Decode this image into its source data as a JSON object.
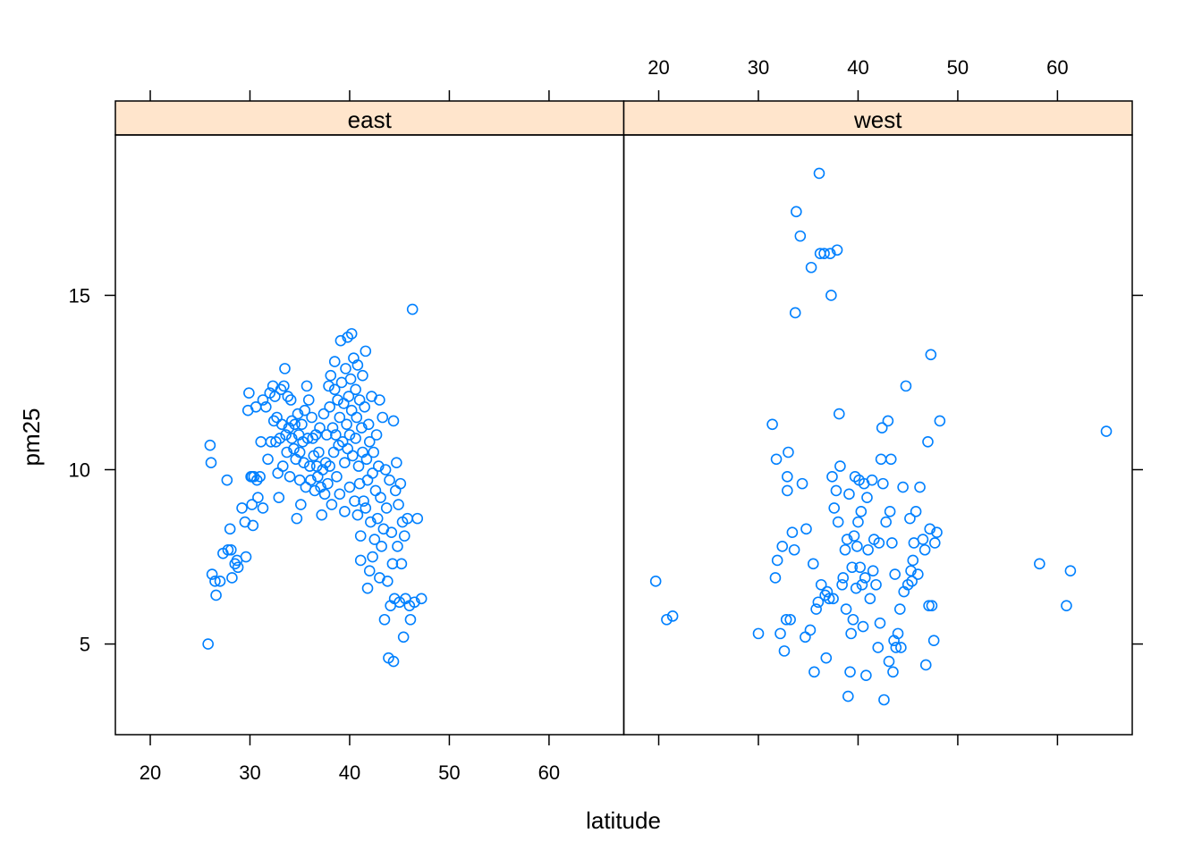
{
  "chart_data": {
    "type": "scatter",
    "xlabel": "latitude",
    "ylabel": "pm25",
    "xlim": [
      16.5,
      67.5
    ],
    "ylim": [
      2.4,
      19.6
    ],
    "xticks": [
      20,
      30,
      40,
      50,
      60
    ],
    "yticks": [
      5,
      10,
      15
    ],
    "grid": false,
    "marker": "open-circle",
    "point_color": "#0080FF",
    "strip_color": "#FFE5CC",
    "panels": [
      {
        "name": "east",
        "points": [
          [
            25.8,
            5.0
          ],
          [
            26.0,
            10.7
          ],
          [
            26.1,
            10.2
          ],
          [
            26.2,
            7.0
          ],
          [
            26.5,
            6.8
          ],
          [
            26.6,
            6.4
          ],
          [
            27.0,
            6.8
          ],
          [
            27.3,
            7.6
          ],
          [
            27.7,
            9.7
          ],
          [
            27.8,
            7.7
          ],
          [
            28.0,
            8.3
          ],
          [
            28.1,
            7.7
          ],
          [
            28.2,
            6.9
          ],
          [
            28.5,
            7.3
          ],
          [
            28.7,
            7.4
          ],
          [
            28.8,
            7.2
          ],
          [
            29.2,
            8.9
          ],
          [
            29.5,
            8.5
          ],
          [
            29.6,
            7.5
          ],
          [
            29.8,
            11.7
          ],
          [
            29.9,
            12.2
          ],
          [
            30.1,
            9.8
          ],
          [
            30.2,
            9.8
          ],
          [
            30.2,
            9.0
          ],
          [
            30.3,
            8.4
          ],
          [
            30.4,
            9.8
          ],
          [
            30.6,
            11.8
          ],
          [
            30.7,
            9.7
          ],
          [
            30.8,
            9.2
          ],
          [
            31.0,
            9.8
          ],
          [
            31.1,
            10.8
          ],
          [
            31.3,
            8.9
          ],
          [
            31.3,
            12.0
          ],
          [
            31.6,
            11.8
          ],
          [
            31.8,
            10.3
          ],
          [
            32.0,
            12.2
          ],
          [
            32.1,
            10.8
          ],
          [
            32.3,
            12.4
          ],
          [
            32.4,
            11.4
          ],
          [
            32.5,
            12.1
          ],
          [
            32.6,
            10.8
          ],
          [
            32.7,
            11.5
          ],
          [
            32.8,
            9.9
          ],
          [
            32.9,
            9.2
          ],
          [
            33.0,
            10.9
          ],
          [
            33.1,
            12.3
          ],
          [
            33.2,
            11.3
          ],
          [
            33.3,
            10.1
          ],
          [
            33.4,
            12.4
          ],
          [
            33.5,
            12.9
          ],
          [
            33.6,
            11.0
          ],
          [
            33.7,
            10.5
          ],
          [
            33.8,
            12.1
          ],
          [
            33.9,
            11.2
          ],
          [
            34.0,
            9.8
          ],
          [
            34.1,
            12.0
          ],
          [
            34.2,
            11.4
          ],
          [
            34.2,
            10.9
          ],
          [
            34.4,
            10.6
          ],
          [
            34.5,
            11.3
          ],
          [
            34.6,
            10.3
          ],
          [
            34.7,
            8.6
          ],
          [
            34.8,
            11.6
          ],
          [
            34.9,
            11.0
          ],
          [
            35.0,
            10.5
          ],
          [
            35.0,
            9.7
          ],
          [
            35.1,
            9.0
          ],
          [
            35.2,
            11.3
          ],
          [
            35.3,
            10.8
          ],
          [
            35.4,
            10.2
          ],
          [
            35.5,
            11.7
          ],
          [
            35.6,
            9.5
          ],
          [
            35.7,
            12.4
          ],
          [
            35.8,
            10.9
          ],
          [
            35.9,
            12.0
          ],
          [
            36.0,
            10.1
          ],
          [
            36.1,
            9.7
          ],
          [
            36.2,
            11.5
          ],
          [
            36.3,
            10.9
          ],
          [
            36.4,
            10.4
          ],
          [
            36.5,
            9.4
          ],
          [
            36.6,
            11.0
          ],
          [
            36.7,
            10.1
          ],
          [
            36.8,
            9.8
          ],
          [
            36.9,
            10.5
          ],
          [
            37.0,
            11.2
          ],
          [
            37.1,
            9.5
          ],
          [
            37.2,
            8.7
          ],
          [
            37.3,
            10.0
          ],
          [
            37.4,
            11.6
          ],
          [
            37.5,
            9.3
          ],
          [
            37.6,
            10.2
          ],
          [
            37.7,
            11.0
          ],
          [
            37.8,
            9.6
          ],
          [
            37.9,
            12.4
          ],
          [
            38.0,
            10.1
          ],
          [
            38.0,
            11.8
          ],
          [
            38.1,
            12.7
          ],
          [
            38.2,
            9.0
          ],
          [
            38.3,
            11.2
          ],
          [
            38.4,
            10.5
          ],
          [
            38.5,
            13.1
          ],
          [
            38.5,
            12.3
          ],
          [
            38.6,
            11.0
          ],
          [
            38.7,
            9.8
          ],
          [
            38.8,
            12.0
          ],
          [
            38.9,
            10.7
          ],
          [
            39.0,
            11.5
          ],
          [
            39.0,
            9.3
          ],
          [
            39.1,
            13.7
          ],
          [
            39.2,
            12.5
          ],
          [
            39.3,
            10.8
          ],
          [
            39.4,
            11.9
          ],
          [
            39.5,
            10.2
          ],
          [
            39.5,
            8.8
          ],
          [
            39.6,
            12.9
          ],
          [
            39.7,
            11.3
          ],
          [
            39.8,
            13.8
          ],
          [
            39.8,
            10.6
          ],
          [
            39.9,
            12.1
          ],
          [
            40.0,
            11.0
          ],
          [
            40.0,
            9.5
          ],
          [
            40.1,
            12.6
          ],
          [
            40.2,
            13.9
          ],
          [
            40.2,
            11.7
          ],
          [
            40.3,
            10.4
          ],
          [
            40.4,
            13.2
          ],
          [
            40.5,
            9.1
          ],
          [
            40.6,
            12.3
          ],
          [
            40.6,
            10.9
          ],
          [
            40.7,
            11.5
          ],
          [
            40.8,
            8.7
          ],
          [
            40.8,
            13.0
          ],
          [
            40.9,
            10.1
          ],
          [
            41.0,
            12.0
          ],
          [
            41.0,
            9.6
          ],
          [
            41.1,
            8.1
          ],
          [
            41.1,
            7.4
          ],
          [
            41.2,
            11.2
          ],
          [
            41.3,
            10.5
          ],
          [
            41.3,
            12.7
          ],
          [
            41.4,
            9.1
          ],
          [
            41.5,
            11.8
          ],
          [
            41.6,
            13.4
          ],
          [
            41.6,
            8.9
          ],
          [
            41.7,
            10.3
          ],
          [
            41.8,
            6.6
          ],
          [
            41.8,
            9.7
          ],
          [
            41.9,
            11.3
          ],
          [
            42.0,
            7.1
          ],
          [
            42.0,
            10.8
          ],
          [
            42.1,
            8.5
          ],
          [
            42.2,
            12.1
          ],
          [
            42.3,
            9.9
          ],
          [
            42.3,
            7.5
          ],
          [
            42.4,
            10.5
          ],
          [
            42.5,
            8.0
          ],
          [
            42.6,
            9.4
          ],
          [
            42.7,
            11.0
          ],
          [
            42.8,
            8.6
          ],
          [
            42.9,
            10.1
          ],
          [
            43.0,
            6.9
          ],
          [
            43.0,
            12.0
          ],
          [
            43.1,
            9.2
          ],
          [
            43.2,
            7.8
          ],
          [
            43.3,
            11.5
          ],
          [
            43.4,
            8.3
          ],
          [
            43.5,
            5.7
          ],
          [
            43.6,
            10.0
          ],
          [
            43.7,
            8.9
          ],
          [
            43.8,
            6.8
          ],
          [
            43.9,
            4.6
          ],
          [
            44.0,
            9.7
          ],
          [
            44.1,
            6.1
          ],
          [
            44.2,
            8.2
          ],
          [
            44.3,
            7.3
          ],
          [
            44.4,
            11.4
          ],
          [
            44.4,
            4.5
          ],
          [
            44.5,
            6.3
          ],
          [
            44.6,
            9.4
          ],
          [
            44.7,
            10.2
          ],
          [
            44.8,
            7.8
          ],
          [
            44.9,
            9.0
          ],
          [
            45.0,
            6.2
          ],
          [
            45.1,
            9.6
          ],
          [
            45.2,
            7.3
          ],
          [
            45.3,
            8.5
          ],
          [
            45.4,
            5.2
          ],
          [
            45.5,
            8.1
          ],
          [
            45.6,
            6.3
          ],
          [
            45.8,
            8.6
          ],
          [
            46.0,
            6.1
          ],
          [
            46.1,
            5.7
          ],
          [
            46.3,
            14.6
          ],
          [
            46.5,
            6.2
          ],
          [
            46.8,
            8.6
          ],
          [
            47.2,
            6.3
          ]
        ]
      },
      {
        "name": "west",
        "points": [
          [
            19.7,
            6.8
          ],
          [
            20.8,
            5.7
          ],
          [
            21.4,
            5.8
          ],
          [
            30.0,
            5.3
          ],
          [
            31.4,
            11.3
          ],
          [
            31.7,
            6.9
          ],
          [
            31.8,
            10.3
          ],
          [
            31.9,
            7.4
          ],
          [
            32.2,
            5.3
          ],
          [
            32.4,
            7.8
          ],
          [
            32.6,
            4.8
          ],
          [
            32.8,
            5.7
          ],
          [
            32.9,
            9.8
          ],
          [
            32.9,
            9.4
          ],
          [
            33.0,
            10.5
          ],
          [
            33.2,
            5.7
          ],
          [
            33.4,
            8.2
          ],
          [
            33.6,
            7.7
          ],
          [
            33.7,
            14.5
          ],
          [
            33.8,
            17.4
          ],
          [
            34.2,
            16.7
          ],
          [
            34.4,
            9.6
          ],
          [
            34.7,
            5.2
          ],
          [
            34.8,
            8.3
          ],
          [
            35.2,
            5.4
          ],
          [
            35.3,
            15.8
          ],
          [
            35.5,
            7.3
          ],
          [
            35.6,
            4.2
          ],
          [
            35.8,
            6.0
          ],
          [
            36.0,
            6.2
          ],
          [
            36.1,
            18.5
          ],
          [
            36.2,
            16.2
          ],
          [
            36.3,
            6.7
          ],
          [
            36.6,
            16.2
          ],
          [
            36.7,
            6.4
          ],
          [
            36.8,
            4.6
          ],
          [
            36.9,
            6.5
          ],
          [
            37.1,
            6.3
          ],
          [
            37.2,
            16.2
          ],
          [
            37.3,
            15.0
          ],
          [
            37.4,
            9.8
          ],
          [
            37.5,
            6.3
          ],
          [
            37.6,
            8.9
          ],
          [
            37.8,
            9.4
          ],
          [
            37.9,
            16.3
          ],
          [
            38.0,
            8.5
          ],
          [
            38.1,
            11.6
          ],
          [
            38.2,
            10.1
          ],
          [
            38.4,
            6.7
          ],
          [
            38.5,
            6.9
          ],
          [
            38.7,
            7.7
          ],
          [
            38.8,
            6.0
          ],
          [
            38.9,
            8.0
          ],
          [
            39.0,
            3.5
          ],
          [
            39.1,
            9.3
          ],
          [
            39.2,
            4.2
          ],
          [
            39.3,
            5.3
          ],
          [
            39.4,
            7.2
          ],
          [
            39.5,
            5.7
          ],
          [
            39.6,
            8.1
          ],
          [
            39.7,
            9.8
          ],
          [
            39.8,
            6.6
          ],
          [
            39.9,
            7.8
          ],
          [
            40.0,
            8.5
          ],
          [
            40.1,
            9.7
          ],
          [
            40.2,
            7.2
          ],
          [
            40.3,
            8.8
          ],
          [
            40.4,
            6.7
          ],
          [
            40.5,
            5.5
          ],
          [
            40.6,
            9.6
          ],
          [
            40.7,
            6.9
          ],
          [
            40.8,
            4.1
          ],
          [
            40.9,
            9.2
          ],
          [
            41.0,
            7.7
          ],
          [
            41.2,
            6.3
          ],
          [
            41.4,
            9.7
          ],
          [
            41.5,
            7.1
          ],
          [
            41.6,
            8.0
          ],
          [
            41.8,
            6.7
          ],
          [
            42.0,
            4.9
          ],
          [
            42.1,
            7.9
          ],
          [
            42.2,
            5.6
          ],
          [
            42.3,
            10.3
          ],
          [
            42.4,
            11.2
          ],
          [
            42.5,
            9.6
          ],
          [
            42.6,
            3.4
          ],
          [
            42.8,
            8.5
          ],
          [
            43.0,
            11.4
          ],
          [
            43.1,
            4.5
          ],
          [
            43.2,
            8.8
          ],
          [
            43.3,
            10.3
          ],
          [
            43.4,
            7.9
          ],
          [
            43.5,
            4.2
          ],
          [
            43.6,
            5.1
          ],
          [
            43.7,
            7.0
          ],
          [
            43.8,
            4.9
          ],
          [
            44.0,
            5.3
          ],
          [
            44.2,
            6.0
          ],
          [
            44.3,
            4.9
          ],
          [
            44.5,
            9.5
          ],
          [
            44.6,
            6.5
          ],
          [
            44.8,
            12.4
          ],
          [
            45.0,
            6.7
          ],
          [
            45.2,
            8.6
          ],
          [
            45.3,
            7.1
          ],
          [
            45.4,
            6.8
          ],
          [
            45.5,
            7.4
          ],
          [
            45.6,
            7.9
          ],
          [
            45.8,
            8.8
          ],
          [
            46.0,
            7.0
          ],
          [
            46.2,
            9.5
          ],
          [
            46.5,
            8.0
          ],
          [
            46.7,
            7.7
          ],
          [
            46.8,
            4.4
          ],
          [
            47.0,
            10.8
          ],
          [
            47.1,
            6.1
          ],
          [
            47.2,
            8.3
          ],
          [
            47.3,
            13.3
          ],
          [
            47.4,
            6.1
          ],
          [
            47.6,
            5.1
          ],
          [
            47.7,
            7.9
          ],
          [
            47.9,
            8.2
          ],
          [
            48.2,
            11.4
          ],
          [
            58.2,
            7.3
          ],
          [
            60.9,
            6.1
          ],
          [
            61.3,
            7.1
          ],
          [
            64.9,
            11.1
          ]
        ]
      }
    ]
  }
}
